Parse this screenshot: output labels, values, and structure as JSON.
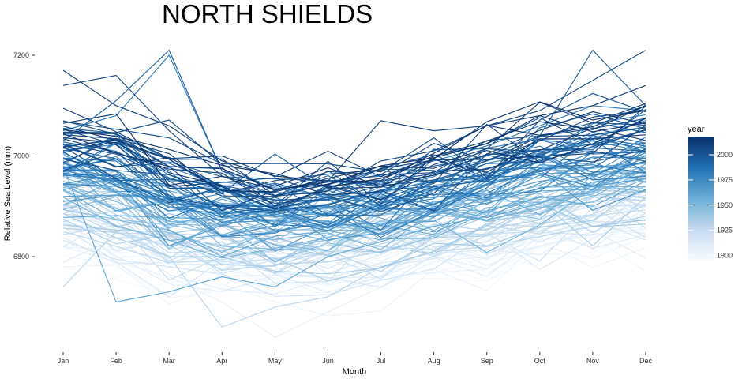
{
  "chart_data": {
    "type": "line",
    "title": "NORTH SHIELDS",
    "xlabel": "Month",
    "ylabel": "Relative Sea Level (mm)",
    "categories": [
      "Jan",
      "Feb",
      "Mar",
      "Apr",
      "May",
      "Jun",
      "Jul",
      "Aug",
      "Sep",
      "Oct",
      "Nov",
      "Dec"
    ],
    "y_ticks": [
      6800,
      7000,
      7200
    ],
    "ylim": [
      6628,
      7232
    ],
    "grid": false,
    "legend": {
      "title": "year",
      "position": "right",
      "type": "colorbar",
      "ticks": [
        1900,
        1925,
        1950,
        1975,
        2000
      ],
      "range": [
        1895,
        2018
      ],
      "color_low": "#f7fbff",
      "color_high": "#08306b"
    },
    "series_summary": {
      "year_range": [
        1895,
        2018
      ],
      "monthly_mean_start": [
        6840,
        6805,
        6770,
        6760,
        6755,
        6760,
        6770,
        6785,
        6795,
        6815,
        6835,
        6845
      ],
      "monthly_mean_end": [
        7065,
        7050,
        7000,
        6960,
        6955,
        6960,
        6975,
        7000,
        7025,
        7055,
        7075,
        7085
      ]
    },
    "highlight_series": [
      {
        "year": 2013,
        "values": [
          7170,
          7100,
          7060,
          6990,
          6960,
          6950,
          7070,
          7050,
          7060,
          7080,
          7100,
          7140
        ]
      },
      {
        "year": 2008,
        "values": [
          7140,
          7160,
          7050,
          6960,
          6920,
          6930,
          6990,
          7010,
          7060,
          7090,
          7150,
          7210
        ]
      },
      {
        "year": 1997,
        "values": [
          7030,
          7110,
          7210,
          6970,
          6940,
          6940,
          6950,
          6980,
          7000,
          7040,
          7210,
          7100
        ]
      },
      {
        "year": 1983,
        "values": [
          7050,
          7080,
          7200,
          6970,
          6920,
          6950,
          6960,
          6990,
          7020,
          7060,
          7100,
          7090
        ]
      },
      {
        "year": 1961,
        "values": [
          6980,
          6710,
          6730,
          6760,
          6740,
          6800,
          6830,
          6860,
          6880,
          6920,
          6900,
          6950
        ]
      },
      {
        "year": 1930,
        "values": [
          6740,
          6850,
          6800,
          6660,
          6700,
          6720,
          6780,
          6810,
          6820,
          6840,
          6860,
          6880
        ]
      },
      {
        "year": 1906,
        "values": [
          6820,
          6790,
          6760,
          6710,
          6640,
          6690,
          6740,
          6790,
          6800,
          6820,
          6850,
          6860
        ]
      }
    ]
  }
}
